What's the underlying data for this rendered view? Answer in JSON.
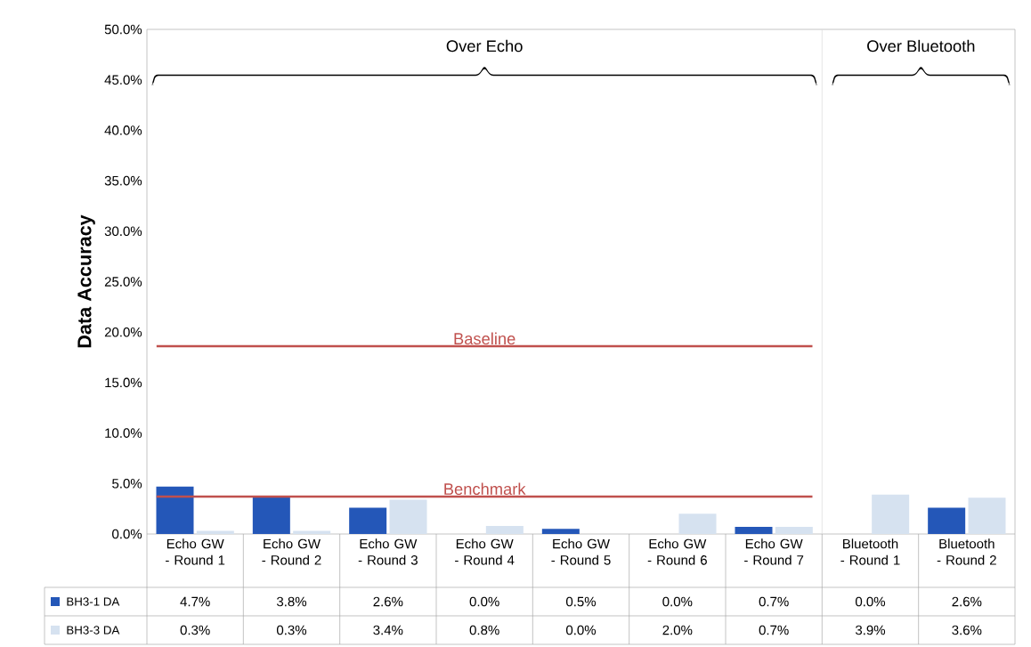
{
  "chart_data": {
    "type": "bar",
    "ylabel": "Data Accuracy",
    "categories": [
      "Echo GW - Round 1",
      "Echo GW - Round 2",
      "Echo GW - Round 3",
      "Echo GW - Round 4",
      "Echo GW - Round 5",
      "Echo GW - Round 6",
      "Echo GW - Round 7",
      "Bluetooth - Round 1",
      "Bluetooth - Round 2"
    ],
    "series": [
      {
        "name": "BH3-1 DA",
        "color": "#2457b8",
        "values": [
          4.7,
          3.8,
          2.6,
          0.0,
          0.5,
          0.0,
          0.7,
          0.0,
          2.6
        ],
        "value_labels": [
          "4.7%",
          "3.8%",
          "2.6%",
          "0.0%",
          "0.5%",
          "0.0%",
          "0.7%",
          "0.0%",
          "2.6%"
        ]
      },
      {
        "name": "BH3-3 DA",
        "color": "#d6e2f0",
        "values": [
          0.3,
          0.3,
          3.4,
          0.8,
          0.0,
          2.0,
          0.7,
          3.9,
          3.6
        ],
        "value_labels": [
          "0.3%",
          "0.3%",
          "3.4%",
          "0.8%",
          "0.0%",
          "2.0%",
          "0.7%",
          "3.9%",
          "3.6%"
        ]
      }
    ],
    "ylim": [
      0,
      50
    ],
    "yticks": [
      {
        "value": 0,
        "label": "0.0%"
      },
      {
        "value": 5,
        "label": "5.0%"
      },
      {
        "value": 10,
        "label": "10.0%"
      },
      {
        "value": 15,
        "label": "15.0%"
      },
      {
        "value": 20,
        "label": "20.0%"
      },
      {
        "value": 25,
        "label": "25.0%"
      },
      {
        "value": 30,
        "label": "30.0%"
      },
      {
        "value": 35,
        "label": "35.0%"
      },
      {
        "value": 40,
        "label": "40.0%"
      },
      {
        "value": 45,
        "label": "45.0%"
      },
      {
        "value": 50,
        "label": "50.0%"
      }
    ],
    "ref_lines": [
      {
        "axis": "y",
        "value": 18.6,
        "label": "Baseline",
        "color": "#c0504d"
      },
      {
        "axis": "y",
        "value": 3.7,
        "label": "Benchmark",
        "color": "#c0504d"
      }
    ],
    "annotations": [
      "Over Echo",
      "Over Bluetooth"
    ],
    "legend": "bottom left",
    "grid": false
  }
}
